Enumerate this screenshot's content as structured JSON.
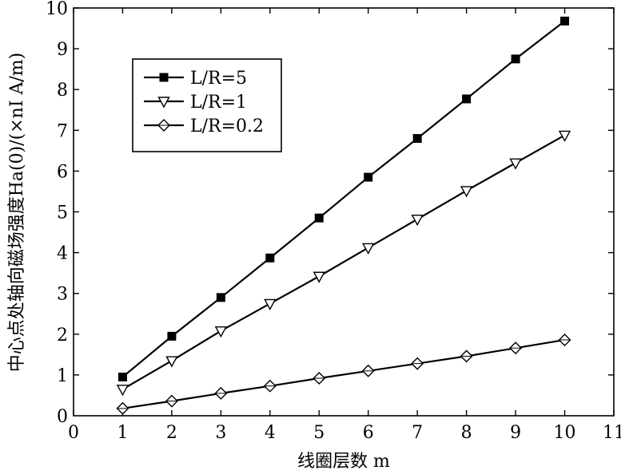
{
  "chart_data": {
    "type": "line",
    "title": "",
    "xlabel": "线圈层数 m",
    "ylabel": "中心点处轴向磁场强度Ha(0)/(×nI A/m)",
    "xlim": [
      0,
      11
    ],
    "ylim": [
      0,
      10
    ],
    "xticks": [
      0,
      1,
      2,
      3,
      4,
      5,
      6,
      7,
      8,
      9,
      10,
      11
    ],
    "yticks": [
      1,
      2,
      3,
      4,
      5,
      6,
      7,
      8,
      9,
      10
    ],
    "y_zero_label": "0",
    "grid": false,
    "legend_position": "top-left",
    "x": [
      1,
      2,
      3,
      4,
      5,
      6,
      7,
      8,
      9,
      10
    ],
    "series": [
      {
        "name": "L/R=5",
        "marker": "square",
        "values": [
          0.95,
          1.95,
          2.9,
          3.87,
          4.85,
          5.85,
          6.8,
          7.77,
          8.75,
          9.68
        ]
      },
      {
        "name": "L/R=1",
        "marker": "triangle-down",
        "values": [
          0.65,
          1.35,
          2.08,
          2.75,
          3.42,
          4.12,
          4.82,
          5.52,
          6.2,
          6.88
        ]
      },
      {
        "name": "L/R=0.2",
        "marker": "diamond",
        "values": [
          0.18,
          0.36,
          0.55,
          0.73,
          0.92,
          1.1,
          1.28,
          1.46,
          1.66,
          1.86
        ]
      }
    ],
    "line_color": "#000000"
  }
}
